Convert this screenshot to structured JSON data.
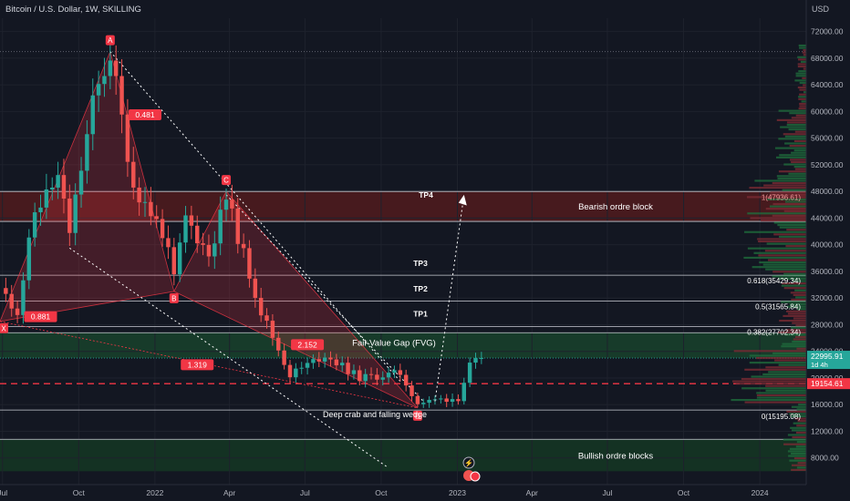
{
  "header": {
    "title": "Bitcoin / U.S. Dollar, 1W, SKILLING"
  },
  "chart_data": {
    "type": "candlestick",
    "y_axis": {
      "unit": "USD",
      "min": 4000,
      "max": 74000,
      "ticks": [
        8000,
        12000,
        16000,
        20000,
        24000,
        28000,
        32000,
        36000,
        40000,
        44000,
        48000,
        52000,
        56000,
        60000,
        64000,
        68000,
        72000
      ],
      "tick_labels": [
        "8000.00",
        "12000.00",
        "16000.00",
        "20000.00",
        "24000.00",
        "28000.00",
        "32000.00",
        "36000.00",
        "40000.00",
        "44000.00",
        "48000.00",
        "52000.00",
        "56000.00",
        "60000.00",
        "64000.00",
        "68000.00",
        "72000.00"
      ]
    },
    "x_axis": {
      "start": "2021-06-28",
      "end": "2024-02-26",
      "ticks": [
        {
          "date": "2021-07-01",
          "label": "Jul"
        },
        {
          "date": "2021-10-01",
          "label": "Oct"
        },
        {
          "date": "2022-01-01",
          "label": "2022"
        },
        {
          "date": "2022-04-01",
          "label": "Apr"
        },
        {
          "date": "2022-07-01",
          "label": "Jul"
        },
        {
          "date": "2022-10-01",
          "label": "Oct"
        },
        {
          "date": "2023-01-01",
          "label": "2023"
        },
        {
          "date": "2023-04-01",
          "label": "Apr"
        },
        {
          "date": "2023-07-01",
          "label": "Jul"
        },
        {
          "date": "2023-10-01",
          "label": "Oct"
        },
        {
          "date": "2024-01-01",
          "label": "2024"
        }
      ]
    },
    "price_anchors": [
      [
        "2021-06-28",
        33500
      ],
      [
        "2021-07-19",
        30000
      ],
      [
        "2021-08-09",
        45000
      ],
      [
        "2021-09-06",
        50000
      ],
      [
        "2021-09-20",
        42000
      ],
      [
        "2021-10-18",
        61000
      ],
      [
        "2021-11-08",
        68800
      ],
      [
        "2021-12-06",
        49000
      ],
      [
        "2022-01-10",
        42000
      ],
      [
        "2022-01-24",
        35000
      ],
      [
        "2022-02-07",
        44000
      ],
      [
        "2022-03-07",
        38500
      ],
      [
        "2022-03-28",
        47000
      ],
      [
        "2022-05-09",
        30000
      ],
      [
        "2022-06-13",
        20500
      ],
      [
        "2022-07-25",
        23500
      ],
      [
        "2022-09-05",
        20000
      ],
      [
        "2022-10-24",
        20700
      ],
      [
        "2022-11-14",
        16200
      ],
      [
        "2022-12-12",
        16800
      ],
      [
        "2023-01-02",
        17000
      ],
      [
        "2023-01-16",
        21800
      ],
      [
        "2023-01-30",
        22996
      ]
    ],
    "current_price": {
      "value": 22995.91,
      "label": "22995.91",
      "interval": "1d 4h"
    },
    "marked_price": {
      "value": 19154.61,
      "label": "19154.61"
    },
    "fib_levels": [
      {
        "label": "1(47936.61)",
        "value": 47936.61
      },
      {
        "label": "0.618(35429.34)",
        "value": 35429.34
      },
      {
        "label": "0.5(31565.84)",
        "value": 31565.84
      },
      {
        "label": "0.382(27702.34)",
        "value": 27702.34
      },
      {
        "label": "0(15195.08)",
        "value": 15195.08
      }
    ],
    "zones": [
      {
        "name": "Bearish ordre block",
        "from": 43500,
        "to": 48000,
        "color": "#4a1a1f"
      },
      {
        "name": "Fair Value Gap (FVG)",
        "from": 23000,
        "to": 26800,
        "color": "#173d2b"
      },
      {
        "name": "Bullish ordre blocks",
        "from": 6000,
        "to": 10800,
        "color": "#143424"
      }
    ],
    "targets": [
      {
        "label": "TP1",
        "value": 27700
      },
      {
        "label": "TP2",
        "value": 31500
      },
      {
        "label": "TP3",
        "value": 35400
      },
      {
        "label": "TP4",
        "value": 48000
      }
    ],
    "pattern": {
      "label": "Deep crab and falling wedge",
      "points": [
        {
          "label": "X",
          "date": "2021-06-28",
          "value": 28500
        },
        {
          "label": "A",
          "date": "2021-11-08",
          "value": 69000
        },
        {
          "label": "B",
          "date": "2022-01-24",
          "value": 33000
        },
        {
          "label": "C",
          "date": "2022-03-28",
          "value": 48000
        },
        {
          "label": "D",
          "date": "2022-11-14",
          "value": 15500
        }
      ],
      "ratios": [
        {
          "label": "0.481",
          "date": "2021-12-20",
          "value": 59500
        },
        {
          "label": "0.881",
          "date": "2021-08-16",
          "value": 29200
        },
        {
          "label": "1.319",
          "date": "2022-02-21",
          "value": 22000
        },
        {
          "label": "2.152",
          "date": "2022-07-04",
          "value": 25000
        }
      ]
    }
  }
}
